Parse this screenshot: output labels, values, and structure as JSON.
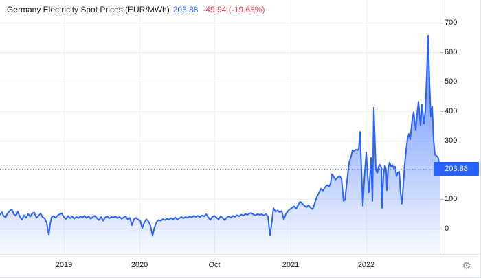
{
  "header": {
    "title": "Germany Electricity Spot Prices (EUR/MWh)",
    "value": "203.88",
    "change": "-49.94 (-19.68%)"
  },
  "icons": {
    "settings": "⚙"
  },
  "colors": {
    "accent": "#2962FF",
    "negative": "#F23645",
    "text": "#131722",
    "grid": "#ECEEF2",
    "axis_border": "#E0E3EB"
  },
  "chart_data": {
    "type": "area",
    "title": "Germany Electricity Spot Prices (EUR/MWh)",
    "ylabel": "EUR/MWh",
    "grid": true,
    "legend_position": "none",
    "xlim": [
      0,
      640
    ],
    "ylim": [
      -86,
      777
    ],
    "last_value": 203.88,
    "last_label": "203.88",
    "change_label": "-49.94 (-19.68%)",
    "y_ticks": [
      {
        "label": "700",
        "value": 700
      },
      {
        "label": "600",
        "value": 600
      },
      {
        "label": "500",
        "value": 500
      },
      {
        "label": "400",
        "value": 400
      },
      {
        "label": "300",
        "value": 300
      },
      {
        "label": "100",
        "value": 100
      },
      {
        "label": "0",
        "value": 0
      }
    ],
    "x_ticks": [
      {
        "label": "2019",
        "x": 93
      },
      {
        "label": "2020",
        "x": 203
      },
      {
        "label": "Oct",
        "x": 312
      },
      {
        "label": "2021",
        "x": 423
      },
      {
        "label": "2022",
        "x": 533
      }
    ],
    "series": [
      {
        "name": "Germany Electricity Spot Price (EUR/MWh)",
        "points": [
          [
            0,
            48
          ],
          [
            3,
            56
          ],
          [
            5,
            44
          ],
          [
            8,
            38
          ],
          [
            11,
            52
          ],
          [
            14,
            60
          ],
          [
            17,
            66
          ],
          [
            20,
            50
          ],
          [
            23,
            44
          ],
          [
            26,
            58
          ],
          [
            29,
            40
          ],
          [
            32,
            31
          ],
          [
            35,
            45
          ],
          [
            38,
            37
          ],
          [
            41,
            50
          ],
          [
            44,
            41
          ],
          [
            47,
            52
          ],
          [
            50,
            55
          ],
          [
            53,
            37
          ],
          [
            56,
            43
          ],
          [
            59,
            52
          ],
          [
            62,
            39
          ],
          [
            65,
            35
          ],
          [
            68,
            20
          ],
          [
            71,
            -21
          ],
          [
            73,
            16
          ],
          [
            75,
            39
          ],
          [
            78,
            43
          ],
          [
            81,
            37
          ],
          [
            84,
            45
          ],
          [
            87,
            49
          ],
          [
            90,
            52
          ],
          [
            93,
            39
          ],
          [
            96,
            33
          ],
          [
            99,
            43
          ],
          [
            102,
            36
          ],
          [
            105,
            42
          ],
          [
            108,
            34
          ],
          [
            111,
            40
          ],
          [
            114,
            36
          ],
          [
            117,
            42
          ],
          [
            120,
            38
          ],
          [
            123,
            44
          ],
          [
            126,
            36
          ],
          [
            129,
            42
          ],
          [
            132,
            34
          ],
          [
            135,
            40
          ],
          [
            138,
            44
          ],
          [
            141,
            36
          ],
          [
            144,
            29
          ],
          [
            147,
            40
          ],
          [
            150,
            27
          ],
          [
            153,
            38
          ],
          [
            156,
            42
          ],
          [
            159,
            35
          ],
          [
            162,
            40
          ],
          [
            165,
            38
          ],
          [
            168,
            42
          ],
          [
            171,
            36
          ],
          [
            174,
            40
          ],
          [
            177,
            34
          ],
          [
            180,
            38
          ],
          [
            183,
            42
          ],
          [
            186,
            31
          ],
          [
            189,
            37
          ],
          [
            192,
            12
          ],
          [
            195,
            33
          ],
          [
            198,
            37
          ],
          [
            201,
            31
          ],
          [
            204,
            28
          ],
          [
            207,
            2
          ],
          [
            210,
            21
          ],
          [
            213,
            32
          ],
          [
            216,
            25
          ],
          [
            219,
            10
          ],
          [
            222,
            -24
          ],
          [
            225,
            6
          ],
          [
            228,
            23
          ],
          [
            231,
            30
          ],
          [
            234,
            27
          ],
          [
            237,
            33
          ],
          [
            240,
            29
          ],
          [
            243,
            34
          ],
          [
            246,
            31
          ],
          [
            249,
            36
          ],
          [
            252,
            32
          ],
          [
            255,
            38
          ],
          [
            258,
            31
          ],
          [
            261,
            36
          ],
          [
            264,
            40
          ],
          [
            267,
            35
          ],
          [
            270,
            40
          ],
          [
            273,
            37
          ],
          [
            276,
            42
          ],
          [
            279,
            38
          ],
          [
            282,
            44
          ],
          [
            285,
            40
          ],
          [
            288,
            44
          ],
          [
            291,
            39
          ],
          [
            294,
            45
          ],
          [
            297,
            42
          ],
          [
            300,
            49
          ],
          [
            303,
            39
          ],
          [
            306,
            30
          ],
          [
            309,
            40
          ],
          [
            312,
            44
          ],
          [
            315,
            38
          ],
          [
            318,
            31
          ],
          [
            321,
            42
          ],
          [
            324,
            37
          ],
          [
            327,
            29
          ],
          [
            330,
            38
          ],
          [
            333,
            42
          ],
          [
            336,
            37
          ],
          [
            339,
            44
          ],
          [
            342,
            40
          ],
          [
            345,
            46
          ],
          [
            348,
            42
          ],
          [
            351,
            48
          ],
          [
            354,
            44
          ],
          [
            357,
            50
          ],
          [
            360,
            47
          ],
          [
            363,
            52
          ],
          [
            366,
            53
          ],
          [
            369,
            48
          ],
          [
            372,
            45
          ],
          [
            375,
            50
          ],
          [
            378,
            47
          ],
          [
            381,
            49
          ],
          [
            384,
            45
          ],
          [
            387,
            50
          ],
          [
            390,
            41
          ],
          [
            393,
            -23
          ],
          [
            396,
            30
          ],
          [
            398,
            70
          ],
          [
            401,
            58
          ],
          [
            404,
            62
          ],
          [
            407,
            56
          ],
          [
            410,
            60
          ],
          [
            413,
            31
          ],
          [
            416,
            50
          ],
          [
            419,
            60
          ],
          [
            422,
            66
          ],
          [
            425,
            71
          ],
          [
            428,
            76
          ],
          [
            431,
            68
          ],
          [
            434,
            81
          ],
          [
            437,
            91
          ],
          [
            440,
            85
          ],
          [
            443,
            78
          ],
          [
            446,
            73
          ],
          [
            449,
            80
          ],
          [
            452,
            71
          ],
          [
            455,
            66
          ],
          [
            458,
            86
          ],
          [
            461,
            108
          ],
          [
            464,
            121
          ],
          [
            467,
            136
          ],
          [
            470,
            129
          ],
          [
            473,
            141
          ],
          [
            476,
            148
          ],
          [
            479,
            144
          ],
          [
            481,
            153
          ],
          [
            483,
            185
          ],
          [
            486,
            176
          ],
          [
            488,
            166
          ],
          [
            491,
            173
          ],
          [
            494,
            179
          ],
          [
            497,
            170
          ],
          [
            500,
            94
          ],
          [
            502,
            97
          ],
          [
            505,
            161
          ],
          [
            508,
            224
          ],
          [
            511,
            246
          ],
          [
            513,
            267
          ],
          [
            515,
            263
          ],
          [
            518,
            269
          ],
          [
            520,
            266
          ],
          [
            522,
            271
          ],
          [
            524,
            329
          ],
          [
            526,
            201
          ],
          [
            528,
            78
          ],
          [
            530,
            161
          ],
          [
            533,
            259
          ],
          [
            535,
            181
          ],
          [
            537,
            124
          ],
          [
            539,
            202
          ],
          [
            540,
            241
          ],
          [
            542,
            94
          ],
          [
            544,
            411
          ],
          [
            547,
            201
          ],
          [
            549,
            189
          ],
          [
            551,
            211
          ],
          [
            553,
            217
          ],
          [
            555,
            206
          ],
          [
            556,
            71
          ],
          [
            558,
            181
          ],
          [
            560,
            213
          ],
          [
            562,
            201
          ],
          [
            563,
            131
          ],
          [
            565,
            206
          ],
          [
            567,
            225
          ],
          [
            569,
            211
          ],
          [
            571,
            216
          ],
          [
            573,
            206
          ],
          [
            575,
            211
          ],
          [
            577,
            178
          ],
          [
            579,
            191
          ],
          [
            581,
            194
          ],
          [
            583,
            121
          ],
          [
            585,
            85
          ],
          [
            587,
            151
          ],
          [
            589,
            221
          ],
          [
            591,
            264
          ],
          [
            593,
            306
          ],
          [
            595,
            322
          ],
          [
            597,
            303
          ],
          [
            600,
            371
          ],
          [
            602,
            396
          ],
          [
            605,
            334
          ],
          [
            607,
            390
          ],
          [
            609,
            431
          ],
          [
            612,
            350
          ],
          [
            614,
            421
          ],
          [
            617,
            357
          ],
          [
            619,
            401
          ],
          [
            621,
            521
          ],
          [
            623,
            656
          ],
          [
            625,
            501
          ],
          [
            627,
            381
          ],
          [
            629,
            415
          ],
          [
            631,
            301
          ],
          [
            633,
            251
          ],
          [
            635,
            248
          ],
          [
            637,
            243
          ],
          [
            638,
            239
          ],
          [
            640,
            204
          ]
        ]
      }
    ]
  }
}
